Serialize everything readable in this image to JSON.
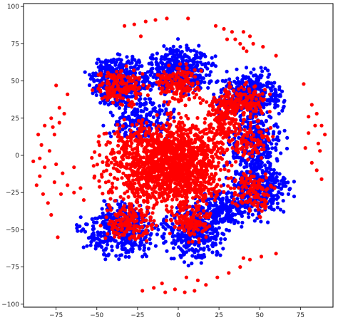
{
  "chart_data": {
    "type": "scatter",
    "title": "",
    "xlabel": "",
    "ylabel": "",
    "xlim": [
      -95,
      95
    ],
    "ylim": [
      -102,
      102
    ],
    "xticks": [
      -75,
      -50,
      -25,
      0,
      25,
      50,
      75
    ],
    "yticks": [
      -100,
      -75,
      -50,
      -25,
      0,
      25,
      50,
      75,
      100
    ],
    "xtick_labels": [
      "−75",
      "−50",
      "−25",
      "0",
      "25",
      "50",
      "75"
    ],
    "ytick_labels": [
      "−100",
      "−75",
      "−50",
      "−25",
      "0",
      "25",
      "50",
      "75",
      "100"
    ],
    "grid": false,
    "legend": "none",
    "series": [
      {
        "color": "#0000ff",
        "clusters": [
          {
            "cx": 0,
            "cy": 58,
            "sx": 11,
            "sy": 8,
            "n": 420
          },
          {
            "cx": -36,
            "cy": 50,
            "sx": 9,
            "sy": 8,
            "n": 380
          },
          {
            "cx": 44,
            "cy": 40,
            "sx": 10,
            "sy": 8,
            "n": 380
          },
          {
            "cx": -22,
            "cy": 24,
            "sx": 10,
            "sy": 7,
            "n": 200
          },
          {
            "cx": 47,
            "cy": 8,
            "sx": 8,
            "sy": 9,
            "n": 260
          },
          {
            "cx": 50,
            "cy": -22,
            "sx": 9,
            "sy": 10,
            "n": 320
          },
          {
            "cx": -35,
            "cy": -50,
            "sx": 11,
            "sy": 9,
            "n": 400
          },
          {
            "cx": 10,
            "cy": -50,
            "sx": 9,
            "sy": 10,
            "n": 380
          },
          {
            "cx": 30,
            "cy": -35,
            "sx": 7,
            "sy": 6,
            "n": 160
          }
        ],
        "points": [
          [
            -52,
            45
          ],
          [
            57,
            45
          ],
          [
            61,
            -35
          ],
          [
            55,
            -45
          ],
          [
            -50,
            -45
          ],
          [
            -22,
            -68
          ],
          [
            5,
            -65
          ],
          [
            -46,
            20
          ],
          [
            62,
            15
          ],
          [
            23,
            60
          ]
        ]
      },
      {
        "color": "#ff0000",
        "clusters": [
          {
            "cx": -10,
            "cy": -5,
            "sx": 18,
            "sy": 14,
            "n": 1100
          },
          {
            "cx": 2,
            "cy": -8,
            "sx": 12,
            "sy": 12,
            "n": 500
          },
          {
            "cx": -35,
            "cy": 45,
            "sx": 7,
            "sy": 6,
            "n": 160
          },
          {
            "cx": 0,
            "cy": 48,
            "sx": 7,
            "sy": 6,
            "n": 160
          },
          {
            "cx": 38,
            "cy": 35,
            "sx": 8,
            "sy": 6,
            "n": 180
          },
          {
            "cx": 45,
            "cy": 10,
            "sx": 6,
            "sy": 6,
            "n": 90
          },
          {
            "cx": 45,
            "cy": -25,
            "sx": 6,
            "sy": 7,
            "n": 120
          },
          {
            "cx": -30,
            "cy": -45,
            "sx": 8,
            "sy": 6,
            "n": 160
          },
          {
            "cx": 8,
            "cy": -45,
            "sx": 6,
            "sy": 6,
            "n": 120
          },
          {
            "cx": 25,
            "cy": 20,
            "sx": 6,
            "sy": 10,
            "n": 140
          }
        ],
        "points": [
          [
            -33,
            87
          ],
          [
            -27,
            88
          ],
          [
            -20,
            90
          ],
          [
            -14,
            91
          ],
          [
            -7,
            92
          ],
          [
            6,
            92
          ],
          [
            -23,
            80
          ],
          [
            23,
            87
          ],
          [
            28,
            85
          ],
          [
            33,
            83
          ],
          [
            35,
            78
          ],
          [
            38,
            75
          ],
          [
            40,
            72
          ],
          [
            42,
            70
          ],
          [
            44,
            80
          ],
          [
            46,
            75
          ],
          [
            52,
            73
          ],
          [
            60,
            67
          ],
          [
            30,
            78
          ],
          [
            40,
            83
          ],
          [
            -75,
            47
          ],
          [
            -68,
            41
          ],
          [
            -73,
            32
          ],
          [
            -78,
            25
          ],
          [
            -82,
            20
          ],
          [
            -86,
            14
          ],
          [
            -84,
            7
          ],
          [
            -79,
            3
          ],
          [
            -85,
            -2
          ],
          [
            -89,
            -4
          ],
          [
            -76,
            14
          ],
          [
            -77,
            19
          ],
          [
            -70,
            28
          ],
          [
            -73,
            22
          ],
          [
            -82,
            -8
          ],
          [
            -85,
            -14
          ],
          [
            -87,
            -20
          ],
          [
            -83,
            -26
          ],
          [
            -80,
            -32
          ],
          [
            -78,
            -40
          ],
          [
            -74,
            -55
          ],
          [
            -75,
            -6
          ],
          [
            -71,
            -12
          ],
          [
            -68,
            -20
          ],
          [
            -64,
            -25
          ],
          [
            -60,
            -22
          ],
          [
            -58,
            -30
          ],
          [
            -76,
            -18
          ],
          [
            -72,
            -26
          ],
          [
            -64,
            -8
          ],
          [
            77,
            48
          ],
          [
            80,
            26
          ],
          [
            82,
            34
          ],
          [
            85,
            28
          ],
          [
            88,
            20
          ],
          [
            90,
            14
          ],
          [
            86,
            8
          ],
          [
            87,
            3
          ],
          [
            82,
            -5
          ],
          [
            85,
            -10
          ],
          [
            88,
            -16
          ],
          [
            80,
            15
          ],
          [
            78,
            5
          ],
          [
            84,
            20
          ],
          [
            -22,
            -91
          ],
          [
            -15,
            -89
          ],
          [
            -8,
            -92
          ],
          [
            -2,
            -90
          ],
          [
            4,
            -92
          ],
          [
            10,
            -91
          ],
          [
            17,
            -87
          ],
          [
            24,
            -82
          ],
          [
            31,
            -79
          ],
          [
            38,
            -75
          ],
          [
            44,
            -70
          ],
          [
            51,
            -68
          ],
          [
            60,
            -66
          ],
          [
            5,
            -82
          ],
          [
            12,
            -84
          ],
          [
            -10,
            -86
          ],
          [
            40,
            -69
          ]
        ]
      }
    ]
  }
}
